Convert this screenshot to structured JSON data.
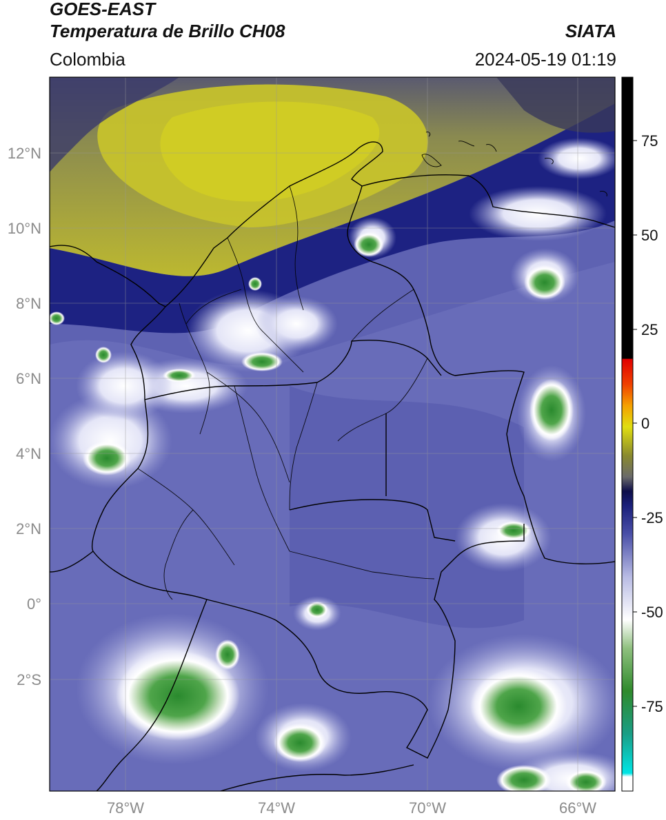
{
  "header": {
    "line1": "GOES-EAST",
    "line2": "Temperatura de Brillo CH08",
    "region": "Colombia",
    "brand": "SIATA",
    "datetime": "2024-05-19 01:19"
  },
  "map": {
    "lat_labels": [
      "12°N",
      "10°N",
      "8°N",
      "6°N",
      "4°N",
      "2°N",
      "0°",
      "2°S"
    ],
    "lon_labels": [
      "78°W",
      "74°W",
      "70°W",
      "66°W"
    ],
    "colors": {
      "dry_yellow": "#c9c52a",
      "olive": "#8c8a3a",
      "gray_dark": "#5a5a6a",
      "navy": "#1e2480",
      "blue": "#5b5fb0",
      "lavender": "#9da0d6",
      "white": "#ffffff",
      "green": "#3f9a3c",
      "teal": "#2aa087"
    }
  },
  "colorbar": {
    "ticks": [
      "75",
      "50",
      "25",
      "0",
      "-25",
      "-50",
      "-75"
    ]
  }
}
